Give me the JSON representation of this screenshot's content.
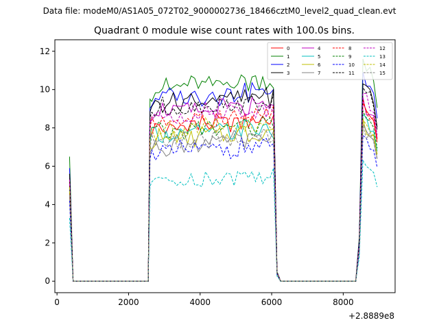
{
  "header": {
    "datafile": "Data file: modeM0/AS1A05_072T02_9000002736_18466cztM0_level2_quad_clean.evt"
  },
  "chart_data": {
    "type": "line",
    "title": "Quadrant 0 module wise count rates with 100.0s bins.",
    "xlabel": "",
    "ylabel": "",
    "x_offset_label": "+2.8889e8",
    "xlim": [
      -60,
      9450
    ],
    "ylim": [
      -0.6,
      12.6
    ],
    "xticks": [
      0,
      2000,
      4000,
      6000,
      8000
    ],
    "yticks": [
      0,
      2,
      4,
      6,
      8,
      10,
      12
    ],
    "grid": false,
    "legend": {
      "placement": "top-right",
      "ncol": 4
    },
    "segments": [
      {
        "start": 350,
        "end": 450,
        "step": 100
      },
      {
        "start": 450,
        "end": 2550,
        "step": 100
      },
      {
        "start": 2550,
        "end": 6150,
        "step": 100
      },
      {
        "start": 6150,
        "end": 8350,
        "step": 100
      },
      {
        "start": 8350,
        "end": 8950,
        "step": 100
      }
    ],
    "series": [
      {
        "name": "0",
        "color": "#ff0000",
        "dash": "solid",
        "level_mid": 8.0,
        "level_late": 9.3,
        "start_val": 5.3
      },
      {
        "name": "1",
        "color": "#008000",
        "dash": "solid",
        "level_mid": 10.0,
        "level_late": 11.6,
        "start_val": 6.5
      },
      {
        "name": "2",
        "color": "#0000ff",
        "dash": "solid",
        "level_mid": 9.5,
        "level_late": 10.9,
        "start_val": 5.9
      },
      {
        "name": "3",
        "color": "#000000",
        "dash": "solid",
        "level_mid": 9.3,
        "level_late": 10.3,
        "start_val": 5.6
      },
      {
        "name": "4",
        "color": "#bf00bf",
        "dash": "solid",
        "level_mid": 8.8,
        "level_late": 9.6,
        "start_val": 5.4
      },
      {
        "name": "5",
        "color": "#00bfbf",
        "dash": "solid",
        "level_mid": 7.6,
        "level_late": 8.7,
        "start_val": 4.8
      },
      {
        "name": "6",
        "color": "#bfbf00",
        "dash": "solid",
        "level_mid": 7.4,
        "level_late": 8.5,
        "start_val": 4.6
      },
      {
        "name": "7",
        "color": "#808080",
        "dash": "solid",
        "level_mid": 7.1,
        "level_late": 8.2,
        "start_val": 4.4
      },
      {
        "name": "8",
        "color": "#ff0000",
        "dash": "dashed",
        "level_mid": 8.3,
        "level_late": 9.5,
        "start_val": 5.2
      },
      {
        "name": "9",
        "color": "#008000",
        "dash": "dashed",
        "level_mid": 7.8,
        "level_late": 8.9,
        "start_val": 4.9
      },
      {
        "name": "10",
        "color": "#0000ff",
        "dash": "dashed",
        "level_mid": 6.7,
        "level_late": 7.6,
        "start_val": 4.2
      },
      {
        "name": "11",
        "color": "#000000",
        "dash": "dashed",
        "level_mid": 9.0,
        "level_late": 10.1,
        "start_val": 5.6
      },
      {
        "name": "12",
        "color": "#bf00bf",
        "dash": "dashed",
        "level_mid": 8.6,
        "level_late": 9.8,
        "start_val": 5.3
      },
      {
        "name": "13",
        "color": "#00bfbf",
        "dash": "dashed",
        "level_mid": 5.2,
        "level_late": 6.3,
        "start_val": 3.3
      },
      {
        "name": "14",
        "color": "#bfbf00",
        "dash": "dashed",
        "level_mid": 7.9,
        "level_late": 8.4,
        "start_val": 4.9
      },
      {
        "name": "15",
        "color": "#808080",
        "dash": "dashed",
        "level_mid": 7.2,
        "level_late": 8.1,
        "start_val": 4.5
      }
    ]
  }
}
